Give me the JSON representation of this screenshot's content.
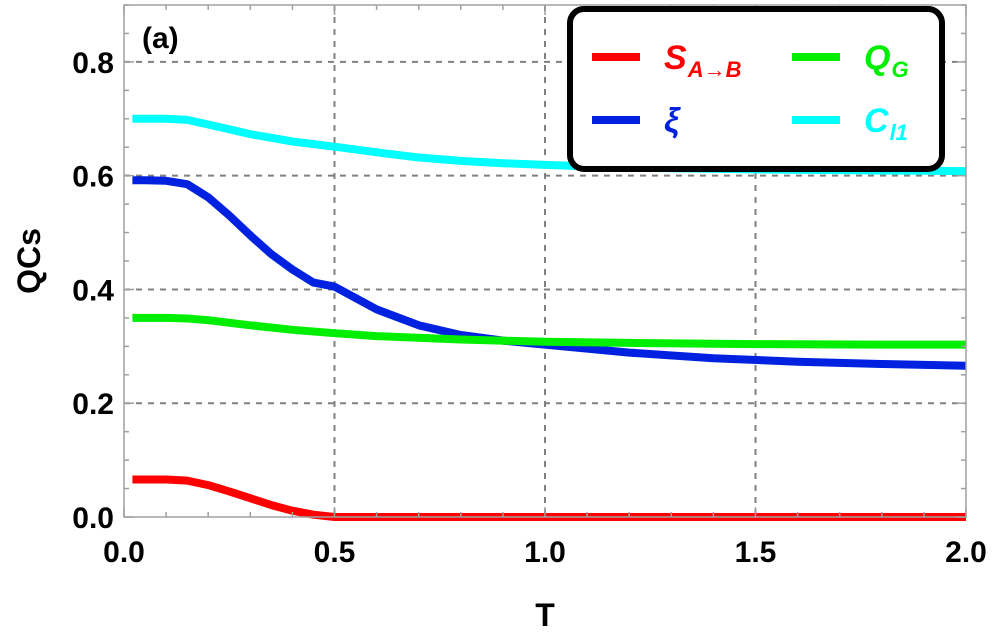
{
  "chart_data": {
    "type": "line",
    "panel_label": "(a)",
    "xlabel": "T",
    "ylabel": "QCs",
    "xlim": [
      0,
      2
    ],
    "ylim": [
      0,
      0.9
    ],
    "xticks": [
      0,
      0.5,
      1,
      1.5,
      2
    ],
    "xtick_labels": [
      "0.0",
      "0.5",
      "1.0",
      "1.5",
      "2.0"
    ],
    "yticks": [
      0,
      0.2,
      0.4,
      0.6,
      0.8
    ],
    "ytick_labels": [
      "0.0",
      "0.2",
      "0.4",
      "0.6",
      "0.8"
    ],
    "grid": true,
    "legend_position": "top-right",
    "series": [
      {
        "name": "S_{A→B}",
        "label_main": "S",
        "label_sub": "A→B",
        "color": "#ff0000",
        "x": [
          0.02,
          0.05,
          0.1,
          0.15,
          0.2,
          0.25,
          0.3,
          0.35,
          0.4,
          0.45,
          0.5,
          0.6,
          0.8,
          1.0,
          1.2,
          1.5,
          1.8,
          2.0
        ],
        "y": [
          0.066,
          0.066,
          0.066,
          0.064,
          0.056,
          0.045,
          0.033,
          0.021,
          0.011,
          0.004,
          0.0,
          0.0,
          0.0,
          0.0,
          0.0,
          0.0,
          0.0,
          0.0
        ]
      },
      {
        "name": "ξ",
        "label_main": "ξ",
        "label_sub": "",
        "color": "#0022e0",
        "x": [
          0.02,
          0.05,
          0.1,
          0.15,
          0.2,
          0.25,
          0.3,
          0.35,
          0.4,
          0.45,
          0.5,
          0.6,
          0.7,
          0.8,
          0.9,
          1.0,
          1.2,
          1.4,
          1.6,
          1.8,
          2.0
        ],
        "y": [
          0.592,
          0.592,
          0.591,
          0.585,
          0.562,
          0.53,
          0.495,
          0.462,
          0.435,
          0.412,
          0.405,
          0.365,
          0.337,
          0.32,
          0.31,
          0.303,
          0.289,
          0.279,
          0.273,
          0.269,
          0.266
        ]
      },
      {
        "name": "Q_G",
        "label_main": "Q",
        "label_sub": "G",
        "color": "#00ee00",
        "x": [
          0.02,
          0.05,
          0.1,
          0.15,
          0.2,
          0.3,
          0.4,
          0.5,
          0.6,
          0.8,
          1.0,
          1.2,
          1.5,
          1.8,
          2.0
        ],
        "y": [
          0.35,
          0.35,
          0.35,
          0.349,
          0.346,
          0.337,
          0.329,
          0.323,
          0.318,
          0.312,
          0.308,
          0.306,
          0.304,
          0.303,
          0.303
        ]
      },
      {
        "name": "C_{l1}",
        "label_main": "C",
        "label_sub": "l1",
        "color": "#00ffff",
        "x": [
          0.02,
          0.05,
          0.1,
          0.15,
          0.2,
          0.3,
          0.4,
          0.5,
          0.6,
          0.7,
          0.8,
          0.9,
          1.0,
          1.2,
          1.5,
          1.8,
          2.0
        ],
        "y": [
          0.7,
          0.7,
          0.7,
          0.698,
          0.69,
          0.673,
          0.66,
          0.651,
          0.641,
          0.632,
          0.626,
          0.622,
          0.619,
          0.614,
          0.611,
          0.609,
          0.608
        ]
      }
    ]
  }
}
